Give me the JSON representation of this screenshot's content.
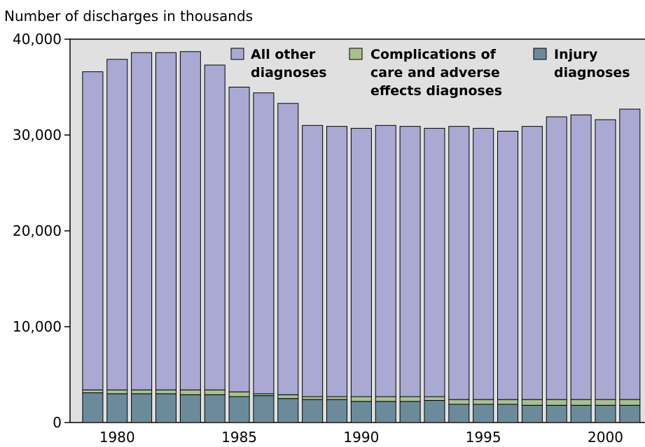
{
  "chart_data": {
    "type": "stacked-bar",
    "y_axis_label": "Number of discharges in thousands",
    "categories": [
      null,
      "1980",
      null,
      null,
      null,
      null,
      "1985",
      null,
      null,
      null,
      null,
      "1990",
      null,
      null,
      null,
      null,
      "1995",
      null,
      null,
      null,
      null,
      "2000",
      null
    ],
    "series": [
      {
        "name": "All other diagnoses",
        "color": "#a9a9d3",
        "values": [
          33200,
          34500,
          35200,
          35200,
          35300,
          33900,
          31800,
          31400,
          30400,
          28300,
          28200,
          28000,
          28300,
          28200,
          28000,
          28500,
          28300,
          28000,
          28500,
          29500,
          29700,
          29200,
          30300
        ]
      },
      {
        "name": "Complications of care and adverse effects diagnoses",
        "color": "#a7c18d",
        "values": [
          300,
          400,
          400,
          400,
          500,
          500,
          500,
          200,
          400,
          300,
          300,
          500,
          500,
          500,
          400,
          500,
          500,
          500,
          600,
          600,
          600,
          600,
          600
        ]
      },
      {
        "name": "Injury diagnoses",
        "color": "#6b8b9b",
        "values": [
          3100,
          3000,
          3000,
          3000,
          2900,
          2900,
          2700,
          2800,
          2500,
          2400,
          2400,
          2200,
          2200,
          2200,
          2300,
          1900,
          1900,
          1900,
          1800,
          1800,
          1800,
          1800,
          1800
        ]
      }
    ],
    "ylim": [
      0,
      40000
    ],
    "yticks": [
      0,
      {
        "value": 10000,
        "label": "10,000"
      },
      {
        "value": 20000,
        "label": "20,000"
      },
      {
        "value": 30000,
        "label": "30,000"
      },
      {
        "value": 40000,
        "label": "40,000"
      }
    ]
  }
}
